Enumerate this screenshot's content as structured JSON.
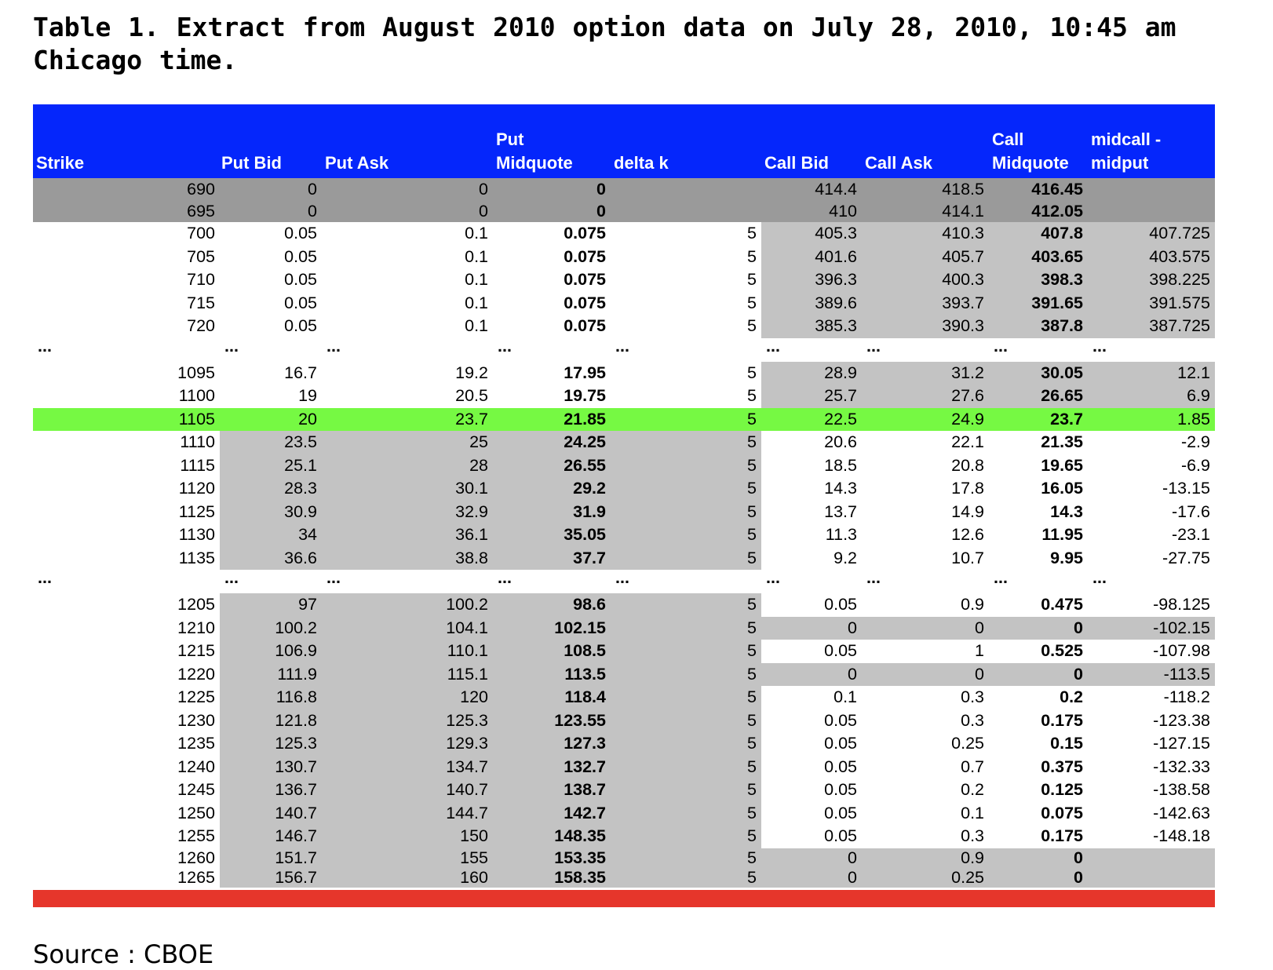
{
  "title": "Table 1. Extract from August 2010 option data on July 28, 2010, 10:45 am Chicago time.",
  "source": "Source : CBOE",
  "colors": {
    "header": "#0526fb",
    "dark_gray": "#9a9a9a",
    "light_gray": "#c3c3c3",
    "highlight": "#76f943",
    "bottom_bar": "#e6362b"
  },
  "headers": [
    {
      "line1": "",
      "line2": "Strike"
    },
    {
      "line1": "",
      "line2": "Put Bid"
    },
    {
      "line1": "",
      "line2": "Put Ask"
    },
    {
      "line1": "Put",
      "line2": "Midquote"
    },
    {
      "line1": "",
      "line2": "delta k"
    },
    {
      "line1": "",
      "line2": "Call Bid"
    },
    {
      "line1": "",
      "line2": "Call Ask"
    },
    {
      "line1": "Call",
      "line2": "Midquote"
    },
    {
      "line1": "midcall -",
      "line2": "midput"
    }
  ],
  "rows": [
    {
      "cells": [
        "690",
        "0",
        "0",
        "0",
        "",
        "414.4",
        "418.5",
        "416.45",
        ""
      ],
      "style": "top"
    },
    {
      "cells": [
        "695",
        "0",
        "0",
        "0",
        "",
        "410",
        "414.1",
        "412.05",
        ""
      ],
      "style": "top"
    },
    {
      "cells": [
        "700",
        "0.05",
        "0.1",
        "0.075",
        "5",
        "405.3",
        "410.3",
        "407.8",
        "407.725"
      ],
      "style": "callg"
    },
    {
      "cells": [
        "705",
        "0.05",
        "0.1",
        "0.075",
        "5",
        "401.6",
        "405.7",
        "403.65",
        "403.575"
      ],
      "style": "callg"
    },
    {
      "cells": [
        "710",
        "0.05",
        "0.1",
        "0.075",
        "5",
        "396.3",
        "400.3",
        "398.3",
        "398.225"
      ],
      "style": "callg"
    },
    {
      "cells": [
        "715",
        "0.05",
        "0.1",
        "0.075",
        "5",
        "389.6",
        "393.7",
        "391.65",
        "391.575"
      ],
      "style": "callg"
    },
    {
      "cells": [
        "720",
        "0.05",
        "0.1",
        "0.075",
        "5",
        "385.3",
        "390.3",
        "387.8",
        "387.725"
      ],
      "style": "callg"
    },
    {
      "cells": [
        "...",
        "...",
        "...",
        "...",
        "...",
        "...",
        "...",
        "...",
        "..."
      ],
      "style": "dots"
    },
    {
      "cells": [
        "1095",
        "16.7",
        "19.2",
        "17.95",
        "5",
        "28.9",
        "31.2",
        "30.05",
        "12.1"
      ],
      "style": "callg"
    },
    {
      "cells": [
        "1100",
        "19",
        "20.5",
        "19.75",
        "5",
        "25.7",
        "27.6",
        "26.65",
        "6.9"
      ],
      "style": "callg"
    },
    {
      "cells": [
        "1105",
        "20",
        "23.7",
        "21.85",
        "5",
        "22.5",
        "24.9",
        "23.7",
        "1.85"
      ],
      "style": "green"
    },
    {
      "cells": [
        "1110",
        "23.5",
        "25",
        "24.25",
        "5",
        "20.6",
        "22.1",
        "21.35",
        "-2.9"
      ],
      "style": "putg"
    },
    {
      "cells": [
        "1115",
        "25.1",
        "28",
        "26.55",
        "5",
        "18.5",
        "20.8",
        "19.65",
        "-6.9"
      ],
      "style": "putg"
    },
    {
      "cells": [
        "1120",
        "28.3",
        "30.1",
        "29.2",
        "5",
        "14.3",
        "17.8",
        "16.05",
        "-13.15"
      ],
      "style": "putg"
    },
    {
      "cells": [
        "1125",
        "30.9",
        "32.9",
        "31.9",
        "5",
        "13.7",
        "14.9",
        "14.3",
        "-17.6"
      ],
      "style": "putg"
    },
    {
      "cells": [
        "1130",
        "34",
        "36.1",
        "35.05",
        "5",
        "11.3",
        "12.6",
        "11.95",
        "-23.1"
      ],
      "style": "putg"
    },
    {
      "cells": [
        "1135",
        "36.6",
        "38.8",
        "37.7",
        "5",
        "9.2",
        "10.7",
        "9.95",
        "-27.75"
      ],
      "style": "putg"
    },
    {
      "cells": [
        "...",
        "...",
        "...",
        "...",
        "...",
        "...",
        "...",
        "...",
        "..."
      ],
      "style": "dots"
    },
    {
      "cells": [
        "1205",
        "97",
        "100.2",
        "98.6",
        "5",
        "0.05",
        "0.9",
        "0.475",
        "-98.125"
      ],
      "style": "putg"
    },
    {
      "cells": [
        "1210",
        "100.2",
        "104.1",
        "102.15",
        "5",
        "0",
        "0",
        "0",
        "-102.15"
      ],
      "style": "both"
    },
    {
      "cells": [
        "1215",
        "106.9",
        "110.1",
        "108.5",
        "5",
        "0.05",
        "1",
        "0.525",
        "-107.98"
      ],
      "style": "putg"
    },
    {
      "cells": [
        "1220",
        "111.9",
        "115.1",
        "113.5",
        "5",
        "0",
        "0",
        "0",
        "-113.5"
      ],
      "style": "both"
    },
    {
      "cells": [
        "1225",
        "116.8",
        "120",
        "118.4",
        "5",
        "0.1",
        "0.3",
        "0.2",
        "-118.2"
      ],
      "style": "putg"
    },
    {
      "cells": [
        "1230",
        "121.8",
        "125.3",
        "123.55",
        "5",
        "0.05",
        "0.3",
        "0.175",
        "-123.38"
      ],
      "style": "putg"
    },
    {
      "cells": [
        "1235",
        "125.3",
        "129.3",
        "127.3",
        "5",
        "0.05",
        "0.25",
        "0.15",
        "-127.15"
      ],
      "style": "putg"
    },
    {
      "cells": [
        "1240",
        "130.7",
        "134.7",
        "132.7",
        "5",
        "0.05",
        "0.7",
        "0.375",
        "-132.33"
      ],
      "style": "putg"
    },
    {
      "cells": [
        "1245",
        "136.7",
        "140.7",
        "138.7",
        "5",
        "0.05",
        "0.2",
        "0.125",
        "-138.58"
      ],
      "style": "putg"
    },
    {
      "cells": [
        "1250",
        "140.7",
        "144.7",
        "142.7",
        "5",
        "0.05",
        "0.1",
        "0.075",
        "-142.63"
      ],
      "style": "putg"
    },
    {
      "cells": [
        "1255",
        "146.7",
        "150",
        "148.35",
        "5",
        "0.05",
        "0.3",
        "0.175",
        "-148.18"
      ],
      "style": "putg"
    },
    {
      "cells": [
        "1260",
        "151.7",
        "155",
        "153.35",
        "5",
        "0",
        "0.9",
        "0",
        ""
      ],
      "style": "bottom"
    },
    {
      "cells": [
        "1265",
        "156.7",
        "160",
        "158.35",
        "5",
        "0",
        "0.25",
        "0",
        ""
      ],
      "style": "bottom"
    }
  ]
}
